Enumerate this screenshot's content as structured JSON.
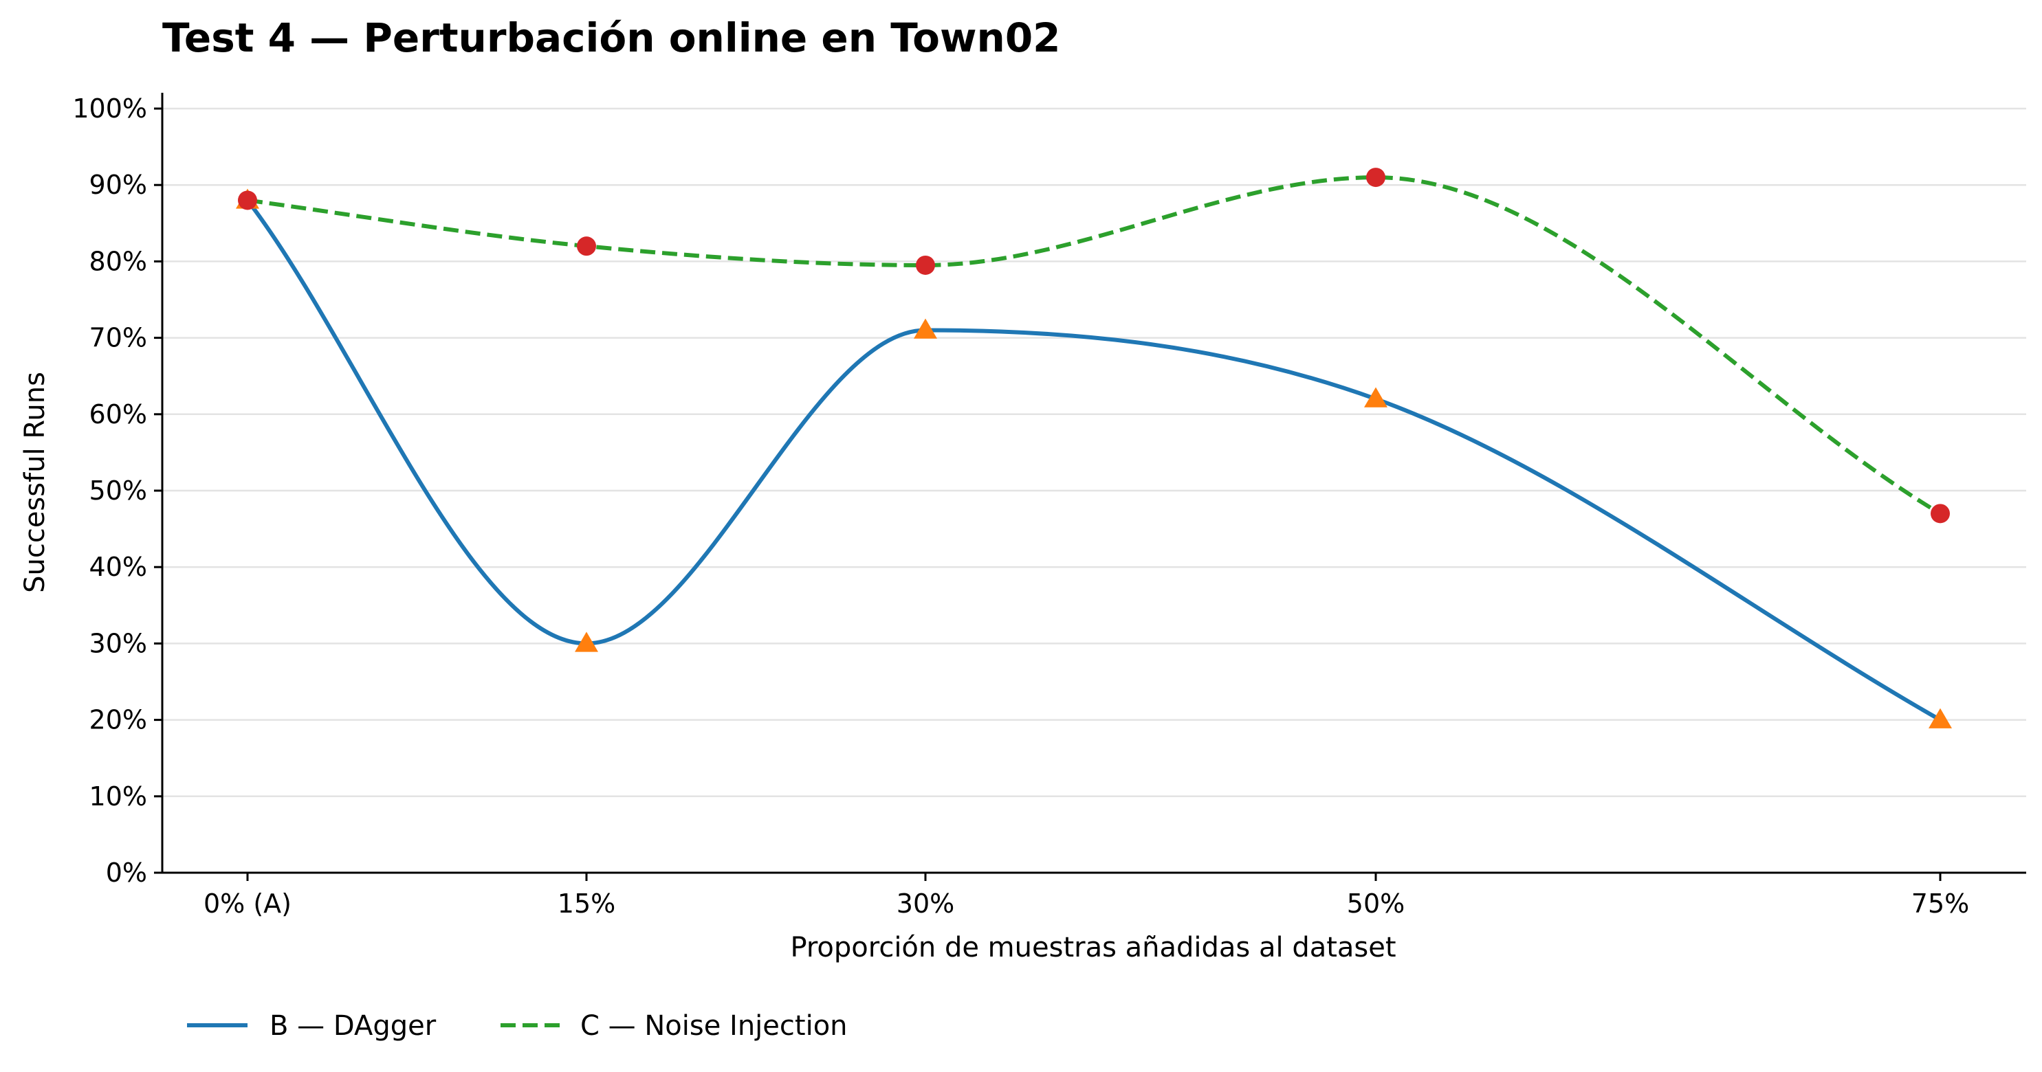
{
  "chart_data": {
    "type": "line",
    "title": "Test 4 — Perturbación online en Town02",
    "xlabel": "Proporción de muestras añadidas al dataset",
    "ylabel": "Successful Runs",
    "categories": [
      "0% (A)",
      "15%",
      "30%",
      "50%",
      "75%"
    ],
    "x": [
      0,
      15,
      30,
      50,
      75
    ],
    "ylim": [
      0,
      100
    ],
    "y_ticks": [
      0,
      10,
      20,
      30,
      40,
      50,
      60,
      70,
      80,
      90,
      100
    ],
    "y_tick_format": "{v}%",
    "grid": "horizontal",
    "legend_position": "bottom-left",
    "series": [
      {
        "name": "B — DAgger",
        "values": [
          88,
          30,
          71,
          62,
          20
        ],
        "line_color": "#1f77b4",
        "marker_color": "#ff7f0e",
        "marker": "triangle",
        "line_style": "solid"
      },
      {
        "name": "C — Noise Injection",
        "values": [
          88,
          82,
          79.5,
          91,
          47
        ],
        "line_color": "#2ca02c",
        "marker_color": "#d62728",
        "marker": "circle",
        "line_style": "dashed"
      }
    ]
  }
}
